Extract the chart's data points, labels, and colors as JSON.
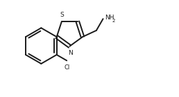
{
  "background_color": "#ffffff",
  "line_color": "#1a1a1a",
  "line_width": 1.4,
  "figsize": [
    2.58,
    1.4
  ],
  "dpi": 100,
  "xlim": [
    0,
    10
  ],
  "ylim": [
    0,
    5.4
  ]
}
